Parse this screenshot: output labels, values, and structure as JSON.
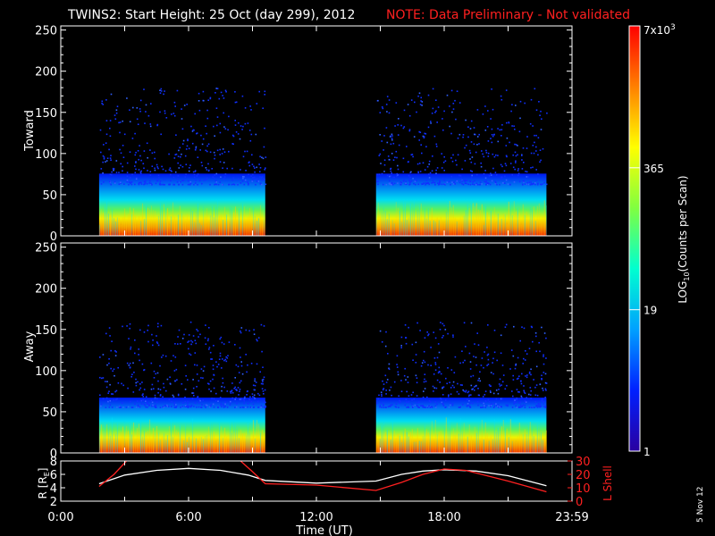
{
  "header": {
    "title": "TWINS2: Start Height: 25 Oct (day 299), 2012",
    "note": "NOTE: Data Preliminary - Not validated"
  },
  "side_note": "5 Nov 12",
  "colorbar": {
    "title": "LOG10(Counts per Scan)",
    "title_main": "LOG",
    "title_sub": "10",
    "title_rest": "(Counts per Scan)",
    "ticks": [
      {
        "label": "1",
        "value": 1
      },
      {
        "label": "19",
        "value": 19
      },
      {
        "label": "365",
        "value": 365
      },
      {
        "label": "7x10^3",
        "value": 7000,
        "main": "7x10",
        "sup": "3"
      }
    ],
    "scale": "log",
    "range": [
      1,
      7000
    ],
    "colors": [
      "#2a00a0",
      "#0020ff",
      "#00a0ff",
      "#00ffd0",
      "#80ff40",
      "#ffff00",
      "#ff8000",
      "#ff0000"
    ]
  },
  "chart_data": [
    {
      "type": "heatmap",
      "panel": "Toward",
      "ylabel": "Toward",
      "ylim": [
        0,
        255
      ],
      "yticks": [
        0,
        50,
        100,
        150,
        200,
        250
      ],
      "xlim_hours": [
        0,
        24
      ],
      "data_intervals_hours": [
        [
          1.8,
          9.6
        ],
        [
          14.8,
          22.8
        ]
      ],
      "max_height_approx": 180
    },
    {
      "type": "heatmap",
      "panel": "Away",
      "ylabel": "Away",
      "ylim": [
        0,
        255
      ],
      "yticks": [
        0,
        50,
        100,
        150,
        200,
        250
      ],
      "xlim_hours": [
        0,
        24
      ],
      "data_intervals_hours": [
        [
          1.8,
          9.6
        ],
        [
          14.8,
          22.8
        ]
      ],
      "max_height_approx": 160
    },
    {
      "type": "line",
      "panel": "orbit",
      "ylabel_left": "R [RE]",
      "ylabel_left_main": "R [R",
      "ylabel_left_sub": "E",
      "ylabel_left_end": "]",
      "ylabel_right": "L Shell",
      "ylim_left": [
        2,
        8
      ],
      "yticks_left": [
        2,
        4,
        6,
        8
      ],
      "ylim_right": [
        0,
        30
      ],
      "yticks_right": [
        0,
        10,
        20,
        30
      ],
      "series": [
        {
          "name": "R",
          "color": "#ffffff",
          "x": [
            1.8,
            3,
            4.5,
            6,
            7.5,
            8.8,
            9.6,
            12,
            14.8,
            16,
            17,
            18,
            19.5,
            21,
            22.8
          ],
          "y": [
            4.6,
            5.9,
            6.6,
            6.9,
            6.6,
            5.9,
            5.1,
            4.7,
            5.0,
            6.0,
            6.5,
            6.7,
            6.5,
            5.8,
            4.3
          ]
        },
        {
          "name": "L Shell",
          "color": "#ff2020",
          "x": [
            1.8,
            2.5,
            3.2,
            8.3,
            9.0,
            9.6,
            12,
            14.8,
            16,
            17,
            18,
            19,
            20,
            21,
            22.8
          ],
          "y": [
            11,
            20,
            32,
            32,
            22,
            13,
            12,
            8,
            14,
            20,
            24,
            23,
            19,
            15,
            7
          ]
        }
      ]
    }
  ],
  "xaxis": {
    "label": "Time (UT)",
    "ticks": [
      {
        "label": "0:00",
        "hour": 0
      },
      {
        "label": "6:00",
        "hour": 6
      },
      {
        "label": "12:00",
        "hour": 12
      },
      {
        "label": "18:00",
        "hour": 18
      },
      {
        "label": "23:59",
        "hour": 24
      }
    ]
  }
}
